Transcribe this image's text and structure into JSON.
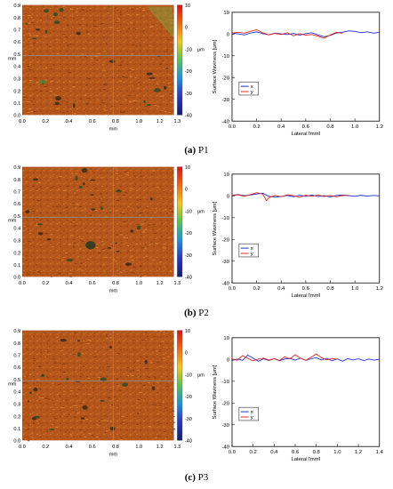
{
  "colors": {
    "x_series": "#1f2bd6",
    "y_series": "#e0241c",
    "map_base": "#b4561c",
    "colorbar": [
      "#d41414",
      "#e86a1c",
      "#f0c828",
      "#5cc05c",
      "#2c8cd0",
      "#2a3ab0",
      "#141c6e"
    ]
  },
  "panels": [
    {
      "caption_label": "(a)",
      "caption_name": "P1",
      "map": {
        "x_ticks": [
          "0.0",
          "0.2",
          "0.4",
          "0.6",
          "0.8",
          "1.0",
          "1.2",
          "1.3"
        ],
        "y_ticks": [
          "0.9",
          "0.8",
          "0.7",
          "0.6",
          "0.5",
          "0.4",
          "0.3",
          "0.2",
          "0.1",
          "0.0"
        ],
        "x_unit": "mm",
        "y_unit": "mm",
        "colorbar_ticks": [
          "10",
          "0",
          "-10",
          "-20",
          "-30",
          "-40"
        ],
        "colorbar_unit": "μm"
      },
      "plot": {
        "ylabel": "Surface Waviness [μm]",
        "xlabel": "Lateral [mm]",
        "y_ticks": [
          "10",
          "0",
          "-10",
          "-20",
          "-30",
          "-40"
        ],
        "x_ticks": [
          "0.0",
          "0.2",
          "0.4",
          "0.6",
          "0.8",
          "1.0",
          "1.2"
        ],
        "legend": [
          "x",
          "y"
        ]
      }
    },
    {
      "caption_label": "(b)",
      "caption_name": "P2",
      "map": {
        "x_ticks": [
          "0.0",
          "0.2",
          "0.4",
          "0.6",
          "0.8",
          "1.0",
          "1.2",
          "1.3"
        ],
        "y_ticks": [
          "0.9",
          "0.8",
          "0.7",
          "0.6",
          "0.5",
          "0.4",
          "0.3",
          "0.2",
          "0.1",
          "0.0"
        ],
        "x_unit": "mm",
        "y_unit": "mm",
        "colorbar_ticks": [
          "10",
          "0",
          "-10",
          "-20",
          "-30",
          "-40"
        ],
        "colorbar_unit": "μm"
      },
      "plot": {
        "ylabel": "Surface Waviness [μm]",
        "xlabel": "Lateral [mm]",
        "y_ticks": [
          "10",
          "0",
          "-10",
          "-20",
          "-30",
          "-40"
        ],
        "x_ticks": [
          "0.0",
          "0.2",
          "0.4",
          "0.6",
          "0.8",
          "1.0",
          "1.2"
        ],
        "legend": [
          "x",
          "y"
        ]
      }
    },
    {
      "caption_label": "(c)",
      "caption_name": "P3",
      "map": {
        "x_ticks": [
          "0.0",
          "0.2",
          "0.4",
          "0.6",
          "0.8",
          "1.0",
          "1.2",
          "1.3"
        ],
        "y_ticks": [
          "0.9",
          "0.8",
          "0.7",
          "0.6",
          "0.5",
          "0.4",
          "0.3",
          "0.2",
          "0.1",
          "0.0"
        ],
        "x_unit": "mm",
        "y_unit": "mm",
        "colorbar_ticks": [
          "10",
          "0",
          "-10",
          "-20",
          "-30",
          "-40"
        ],
        "colorbar_unit": "μm"
      },
      "plot": {
        "ylabel": "Surface Waviness [μm]",
        "xlabel": "Lateral [mm]",
        "y_ticks": [
          "10",
          "0",
          "-10",
          "-20",
          "-30",
          "-40"
        ],
        "x_ticks": [
          "0.0",
          "0.2",
          "0.4",
          "0.6",
          "0.8",
          "1.0",
          "1.2",
          "1.4"
        ],
        "legend": [
          "x",
          "y"
        ]
      }
    }
  ],
  "chart_data": [
    {
      "type": "line",
      "panel": "P1",
      "xlabel": "Lateral [mm]",
      "ylabel": "Surface Waviness [μm]",
      "xlim": [
        0,
        1.2
      ],
      "ylim": [
        -40,
        10
      ],
      "series": [
        {
          "name": "x",
          "x": [
            0.0,
            0.05,
            0.1,
            0.15,
            0.2,
            0.25,
            0.3,
            0.35,
            0.4,
            0.45,
            0.5,
            0.55,
            0.6,
            0.65,
            0.7,
            0.75,
            0.8,
            0.85,
            0.9,
            0.95,
            1.0,
            1.05,
            1.1,
            1.15,
            1.2
          ],
          "values": [
            0.4,
            0.1,
            -0.4,
            0.5,
            1.0,
            0.2,
            -0.3,
            0.4,
            0.1,
            -0.2,
            0.3,
            -0.5,
            0.2,
            0.6,
            -0.4,
            -1.2,
            -0.6,
            0.5,
            0.9,
            1.5,
            1.2,
            0.6,
            1.0,
            0.4,
            0.8
          ]
        },
        {
          "name": "y",
          "x": [
            0.0,
            0.05,
            0.1,
            0.15,
            0.2,
            0.25,
            0.3,
            0.35,
            0.4,
            0.45,
            0.5,
            0.55,
            0.6,
            0.65,
            0.7,
            0.75,
            0.8,
            0.85,
            0.9
          ],
          "values": [
            0.5,
            0.8,
            0.4,
            1.2,
            2.0,
            0.6,
            -0.4,
            0.3,
            -0.2,
            0.6,
            -0.8,
            0.2,
            -0.5,
            -0.2,
            -1.0,
            -1.8,
            -0.4,
            0.8,
            0.3
          ]
        }
      ]
    },
    {
      "type": "line",
      "panel": "P2",
      "xlabel": "Lateral [mm]",
      "ylabel": "Surface Waviness [μm]",
      "xlim": [
        0,
        1.2
      ],
      "ylim": [
        -40,
        10
      ],
      "series": [
        {
          "name": "x",
          "x": [
            0.0,
            0.05,
            0.1,
            0.15,
            0.2,
            0.25,
            0.3,
            0.35,
            0.4,
            0.45,
            0.5,
            0.55,
            0.6,
            0.65,
            0.7,
            0.75,
            0.8,
            0.85,
            0.9,
            0.95,
            1.0,
            1.05,
            1.1,
            1.15,
            1.2
          ],
          "values": [
            0.3,
            0.6,
            0.1,
            0.4,
            0.9,
            1.2,
            -0.2,
            -0.6,
            -0.3,
            0.2,
            -0.4,
            0.3,
            -0.2,
            0.4,
            -0.3,
            0.1,
            -0.5,
            0.2,
            0.4,
            0.1,
            -0.2,
            0.3,
            -0.1,
            0.2,
            0.0
          ]
        },
        {
          "name": "y",
          "x": [
            0.0,
            0.05,
            0.1,
            0.15,
            0.2,
            0.25,
            0.28,
            0.3,
            0.35,
            0.4,
            0.45,
            0.5,
            0.55,
            0.6,
            0.65,
            0.7,
            0.75,
            0.8,
            0.85,
            0.9,
            0.95
          ],
          "values": [
            0.2,
            0.5,
            -0.2,
            0.6,
            1.5,
            0.8,
            -2.2,
            -0.8,
            0.2,
            -0.4,
            0.5,
            0.1,
            -0.6,
            0.3,
            -0.2,
            0.4,
            -0.3,
            0.2,
            -0.4,
            0.1,
            0.3
          ]
        }
      ]
    },
    {
      "type": "line",
      "panel": "P3",
      "xlabel": "Lateral [mm]",
      "ylabel": "Surface Waviness [μm]",
      "xlim": [
        0,
        1.4
      ],
      "ylim": [
        -40,
        10
      ],
      "series": [
        {
          "name": "x",
          "x": [
            0.0,
            0.05,
            0.1,
            0.15,
            0.2,
            0.25,
            0.3,
            0.35,
            0.4,
            0.45,
            0.5,
            0.55,
            0.6,
            0.65,
            0.7,
            0.75,
            0.8,
            0.85,
            0.9,
            0.95,
            1.0,
            1.05,
            1.1,
            1.15,
            1.2,
            1.25,
            1.3,
            1.35,
            1.4
          ],
          "values": [
            -0.5,
            0.2,
            -0.4,
            2.0,
            0.6,
            -0.8,
            0.3,
            -0.5,
            0.4,
            -0.6,
            0.2,
            0.5,
            -0.3,
            0.6,
            -0.4,
            0.3,
            0.8,
            -0.2,
            0.5,
            -0.6,
            0.3,
            -0.8,
            0.4,
            -0.2,
            0.3,
            -0.5,
            0.2,
            -0.3,
            0.1
          ]
        },
        {
          "name": "y",
          "x": [
            0.0,
            0.05,
            0.1,
            0.15,
            0.2,
            0.25,
            0.3,
            0.35,
            0.4,
            0.45,
            0.5,
            0.55,
            0.6,
            0.65,
            0.7,
            0.75,
            0.8,
            0.85,
            0.9,
            0.95,
            1.0
          ],
          "values": [
            0.3,
            -0.4,
            1.8,
            0.5,
            -0.6,
            0.2,
            0.6,
            -0.3,
            0.4,
            -0.5,
            1.2,
            0.3,
            2.2,
            0.6,
            -0.4,
            1.0,
            2.5,
            0.8,
            -0.2,
            0.4,
            0.1
          ]
        }
      ]
    }
  ]
}
